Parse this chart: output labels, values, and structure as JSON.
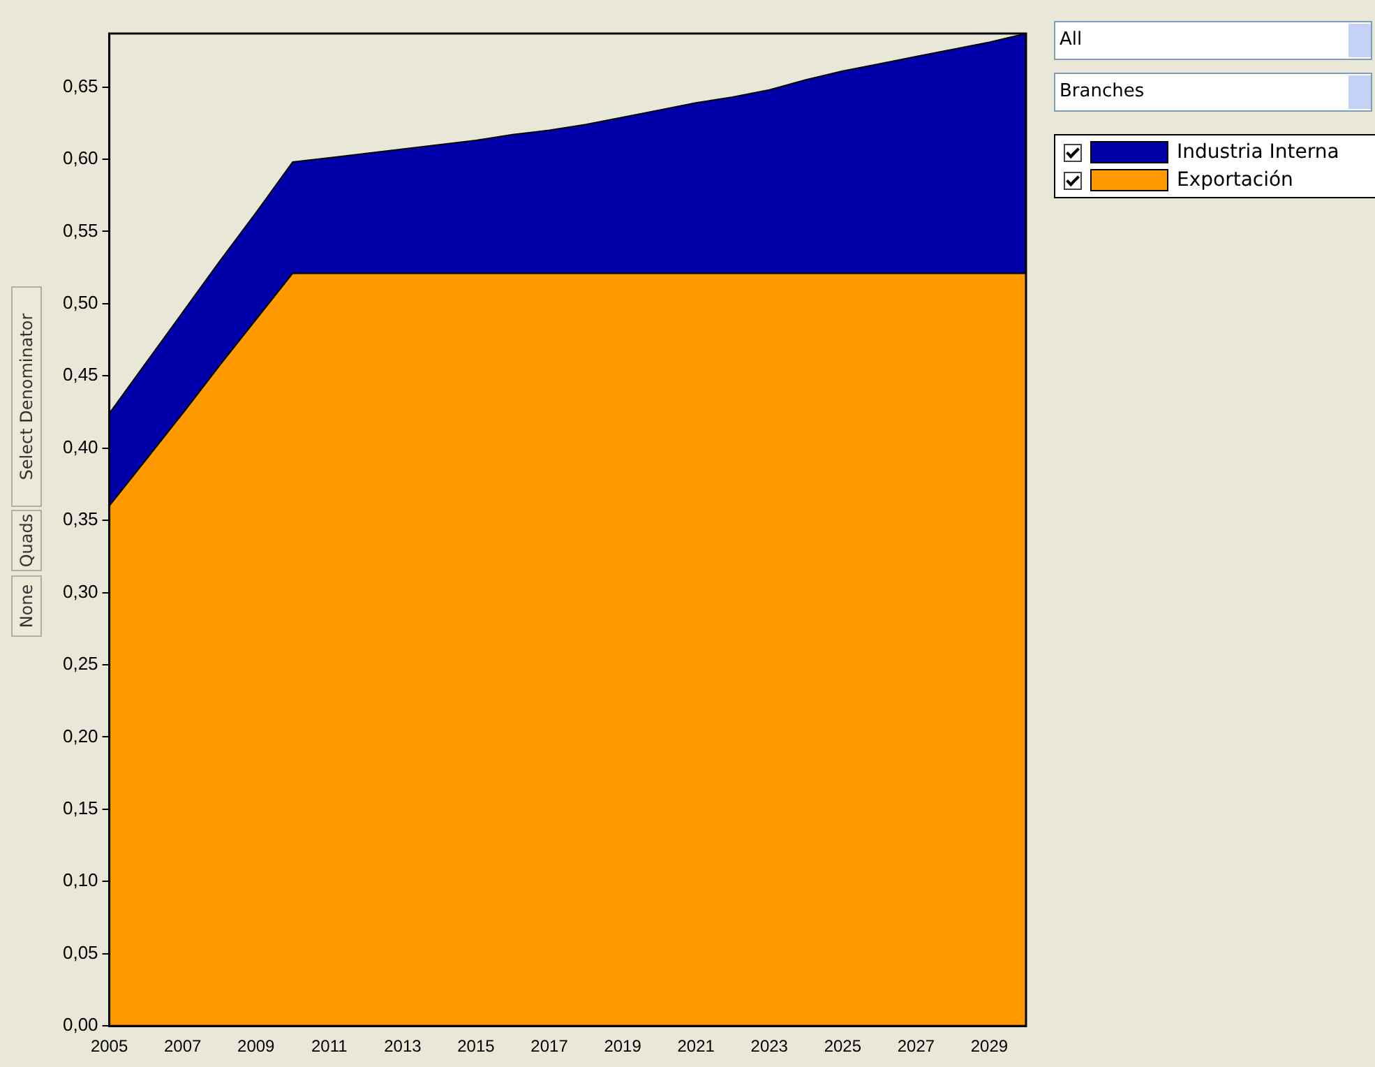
{
  "chart_data": {
    "type": "area",
    "stacked": true,
    "x": [
      2005,
      2006,
      2007,
      2008,
      2009,
      2010,
      2011,
      2012,
      2013,
      2014,
      2015,
      2016,
      2017,
      2018,
      2019,
      2020,
      2021,
      2022,
      2023,
      2024,
      2025,
      2026,
      2027,
      2028,
      2029,
      2030
    ],
    "series": [
      {
        "name": "Exportación",
        "color": "#ff9900",
        "values": [
          0.36,
          0.392,
          0.424,
          0.457,
          0.489,
          0.521,
          0.521,
          0.521,
          0.521,
          0.521,
          0.521,
          0.521,
          0.521,
          0.521,
          0.521,
          0.521,
          0.521,
          0.521,
          0.521,
          0.521,
          0.521,
          0.521,
          0.521,
          0.521,
          0.521,
          0.521
        ]
      },
      {
        "name": "Industria Interna",
        "color": "#0000aa",
        "values": [
          0.064,
          0.067,
          0.07,
          0.072,
          0.074,
          0.077,
          0.08,
          0.083,
          0.086,
          0.089,
          0.092,
          0.096,
          0.099,
          0.103,
          0.108,
          0.113,
          0.118,
          0.122,
          0.127,
          0.134,
          0.14,
          0.145,
          0.15,
          0.155,
          0.16,
          0.166
        ]
      }
    ],
    "xlim": [
      2005,
      2030
    ],
    "xticks": [
      2005,
      2007,
      2009,
      2011,
      2013,
      2015,
      2017,
      2019,
      2021,
      2023,
      2025,
      2027,
      2029
    ],
    "ylim": [
      0,
      0.687
    ],
    "yticks": [
      {
        "value": 0,
        "label": "0,00"
      },
      {
        "value": 0.05,
        "label": "0,05"
      },
      {
        "value": 0.1,
        "label": "0,10"
      },
      {
        "value": 0.15,
        "label": "0,15"
      },
      {
        "value": 0.2,
        "label": "0,20"
      },
      {
        "value": 0.25,
        "label": "0,25"
      },
      {
        "value": 0.3,
        "label": "0,30"
      },
      {
        "value": 0.35,
        "label": "0,35"
      },
      {
        "value": 0.4,
        "label": "0,40"
      },
      {
        "value": 0.45,
        "label": "0,45"
      },
      {
        "value": 0.5,
        "label": "0,50"
      },
      {
        "value": 0.55,
        "label": "0,55"
      },
      {
        "value": 0.6,
        "label": "0,60"
      },
      {
        "value": 0.65,
        "label": "0,65"
      }
    ],
    "grid": false,
    "legend": "top right",
    "marker": "none",
    "annotations": [
      "All",
      "Branches",
      "Select Denominator",
      "Quads",
      "None"
    ]
  }
}
